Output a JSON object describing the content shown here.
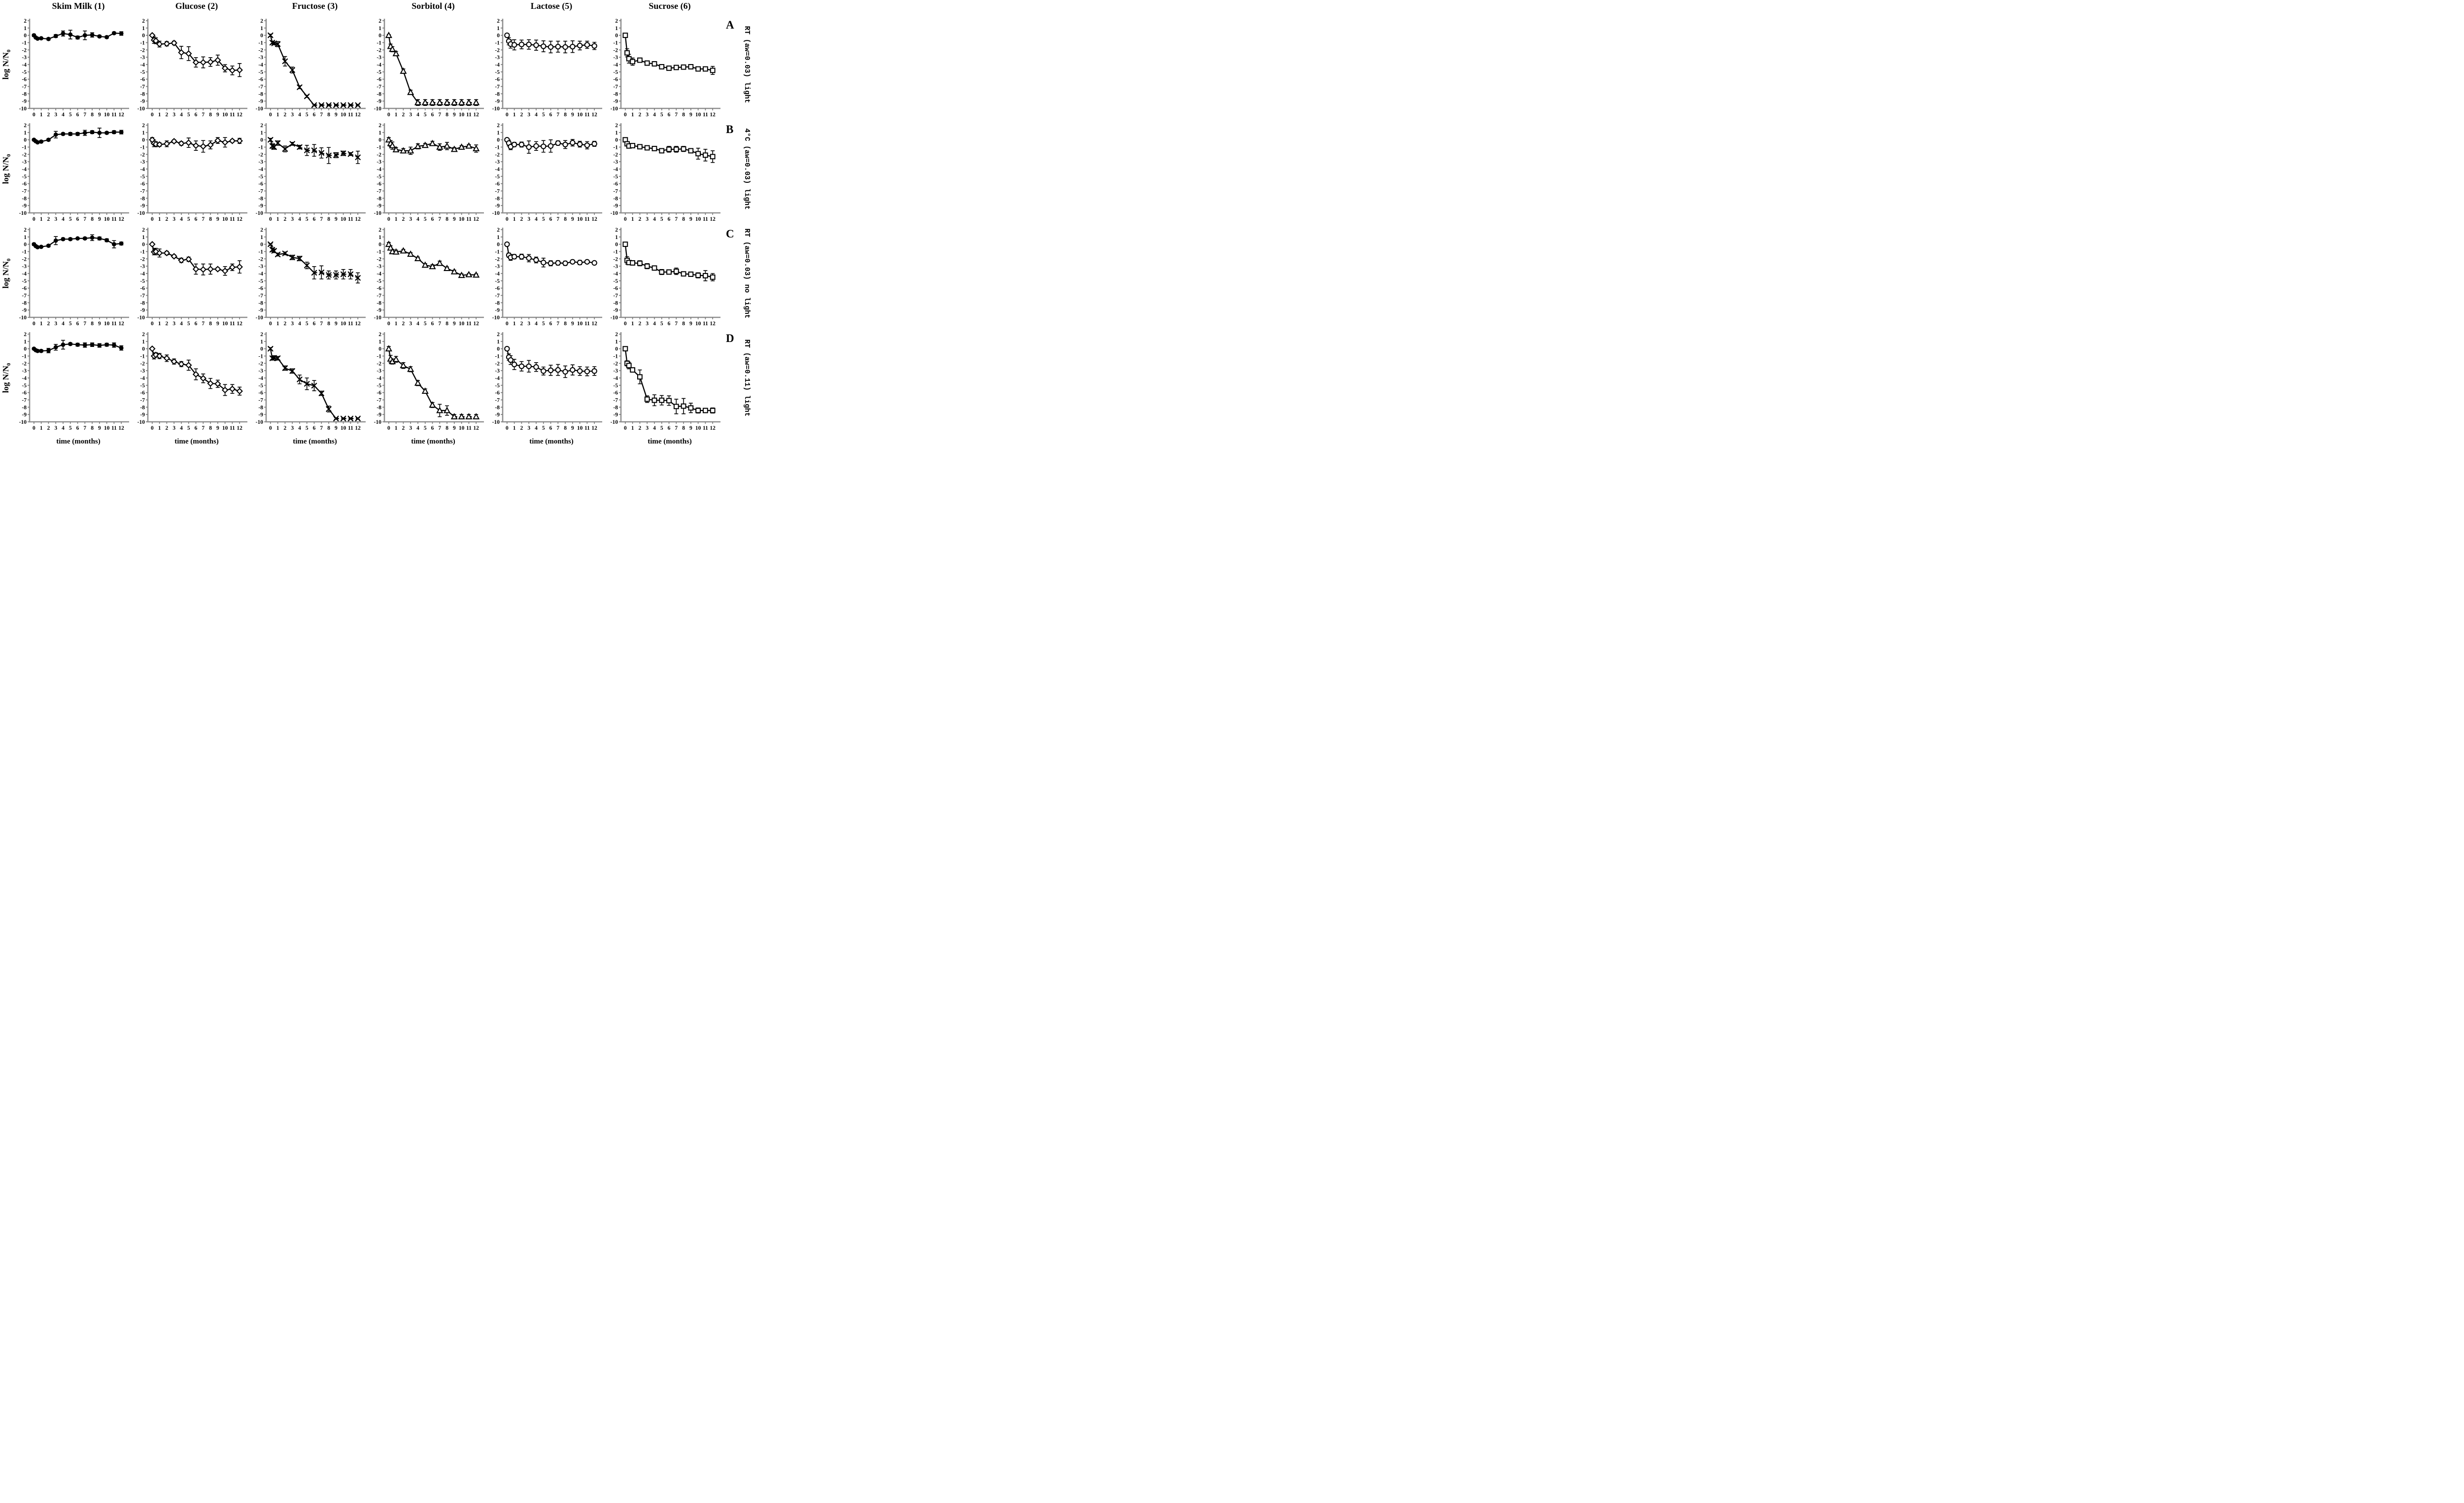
{
  "figure": {
    "y_axis_label_main": "log N/N",
    "y_axis_label_sub": "0"
  },
  "chart_data": {
    "type": "line",
    "layout": "4 rows x 6 columns of line panels with error bars",
    "x_label": "time (months)",
    "y_label": "log N/N0",
    "xlim": [
      0,
      12
    ],
    "ylim": [
      -10,
      2
    ],
    "grid": "off",
    "legend": "none",
    "y_tick_labels": [
      "2",
      "1",
      "0",
      "-1",
      "-2",
      "-3",
      "-4",
      "-5",
      "-6",
      "-7",
      "-8",
      "-9",
      "-10"
    ],
    "x_tick_labels": [
      "0",
      "1",
      "2",
      "3",
      "4",
      "5",
      "6",
      "7",
      "8",
      "9",
      "10",
      "11",
      "12"
    ],
    "x_sample_months": [
      0,
      0.25,
      0.5,
      1,
      2,
      3,
      4,
      5,
      6,
      7,
      8,
      9,
      10,
      11,
      12
    ],
    "columns": [
      {
        "title": "Skim Milk (1)",
        "marker": "filled-circle"
      },
      {
        "title": "Glucose (2)",
        "marker": "open-diamond"
      },
      {
        "title": "Fructose (3)",
        "marker": "x-cross"
      },
      {
        "title": "Sorbitol (4)",
        "marker": "open-triangle"
      },
      {
        "title": "Lactose (5)",
        "marker": "open-circle"
      },
      {
        "title": "Sucrose (6)",
        "marker": "open-square"
      }
    ],
    "rows": [
      {
        "letter": "A",
        "condition": "RT (aw=0.03) light"
      },
      {
        "letter": "B",
        "condition": "4°C (aw=0.03) light"
      },
      {
        "letter": "C",
        "condition": "RT (aw=0.03) no light"
      },
      {
        "letter": "D",
        "condition": "RT (aw=0.11) light"
      }
    ],
    "panels": [
      {
        "row": "A",
        "column": "Skim Milk (1)",
        "marker": "filled-circle",
        "dash_from": null,
        "y": [
          0,
          -0.3,
          -0.45,
          -0.4,
          -0.5,
          -0.1,
          0.25,
          0.1,
          -0.3,
          0.0,
          0.05,
          -0.15,
          -0.25,
          0.3,
          0.25
        ],
        "yerr": [
          0.15,
          0.1,
          0.1,
          0.1,
          0.15,
          0.2,
          0.35,
          0.6,
          0.2,
          0.6,
          0.3,
          0.15,
          0.15,
          0.15,
          0.25
        ]
      },
      {
        "row": "A",
        "column": "Glucose (2)",
        "marker": "open-diamond",
        "dash_from": null,
        "y": [
          0,
          -0.65,
          -0.75,
          -1.2,
          -1.15,
          -1.05,
          -2.35,
          -2.5,
          -3.7,
          -3.7,
          -3.65,
          -3.4,
          -4.5,
          -4.8,
          -4.75
        ],
        "yerr": [
          0.1,
          0.45,
          0.4,
          0.4,
          0.3,
          0.25,
          0.85,
          0.95,
          0.65,
          0.75,
          0.6,
          0.7,
          0.5,
          0.6,
          0.9
        ]
      },
      {
        "row": "A",
        "column": "Fructose (3)",
        "marker": "x-cross",
        "dash_from": 8,
        "y": [
          0,
          -1.0,
          -1.1,
          -1.2,
          -3.55,
          -4.75,
          -7.1,
          -8.35,
          -9.55,
          -9.55,
          -9.55,
          -9.55,
          -9.55,
          -9.55,
          -9.55
        ],
        "yerr": [
          0.15,
          0.2,
          0.2,
          0.35,
          0.65,
          0.4,
          0.2,
          0.15,
          0.1,
          0.1,
          0.1,
          0.1,
          0.1,
          0.1,
          0.1
        ]
      },
      {
        "row": "A",
        "column": "Sorbitol (4)",
        "marker": "open-triangle",
        "dash_from": 6,
        "y": [
          0,
          -1.5,
          -1.9,
          -2.5,
          -4.9,
          -7.8,
          -9.2,
          -9.2,
          -9.2,
          -9.2,
          -9.2,
          -9.2,
          -9.2,
          -9.2,
          -9.2
        ],
        "yerr": [
          0.1,
          0.3,
          0.35,
          0.3,
          0.3,
          0.3,
          0.4,
          0.4,
          0.4,
          0.4,
          0.4,
          0.4,
          0.4,
          0.4,
          0.4
        ]
      },
      {
        "row": "A",
        "column": "Lactose (5)",
        "marker": "open-circle",
        "dash_from": null,
        "y": [
          0,
          -0.8,
          -1.2,
          -1.3,
          -1.25,
          -1.25,
          -1.35,
          -1.5,
          -1.6,
          -1.55,
          -1.6,
          -1.55,
          -1.4,
          -1.3,
          -1.45
        ],
        "yerr": [
          0.1,
          0.5,
          0.55,
          0.7,
          0.6,
          0.65,
          0.7,
          0.75,
          0.8,
          0.75,
          0.8,
          0.8,
          0.6,
          0.5,
          0.5
        ]
      },
      {
        "row": "A",
        "column": "Sucrose (6)",
        "marker": "open-square",
        "dash_from": null,
        "y": [
          0,
          -2.4,
          -3.2,
          -3.6,
          -3.4,
          -3.8,
          -3.9,
          -4.3,
          -4.5,
          -4.4,
          -4.35,
          -4.3,
          -4.6,
          -4.6,
          -4.8
        ],
        "yerr": [
          0.05,
          0.55,
          0.6,
          0.5,
          0.3,
          0.3,
          0.3,
          0.25,
          0.2,
          0.25,
          0.2,
          0.3,
          0.2,
          0.25,
          0.55
        ]
      },
      {
        "row": "B",
        "column": "Skim Milk (1)",
        "marker": "filled-circle",
        "dash_from": null,
        "y": [
          0,
          -0.2,
          -0.35,
          -0.25,
          0.0,
          0.7,
          0.8,
          0.8,
          0.8,
          0.95,
          1.05,
          0.95,
          0.95,
          1.05,
          1.05
        ],
        "yerr": [
          0.1,
          0.1,
          0.1,
          0.15,
          0.15,
          0.45,
          0.15,
          0.2,
          0.2,
          0.35,
          0.2,
          0.65,
          0.15,
          0.2,
          0.25
        ]
      },
      {
        "row": "B",
        "column": "Glucose (2)",
        "marker": "open-diamond",
        "dash_from": null,
        "y": [
          0,
          -0.5,
          -0.6,
          -0.65,
          -0.55,
          -0.2,
          -0.5,
          -0.4,
          -0.8,
          -0.9,
          -0.7,
          -0.1,
          -0.35,
          -0.15,
          -0.15
        ],
        "yerr": [
          0.3,
          0.45,
          0.35,
          0.25,
          0.4,
          0.2,
          0.25,
          0.65,
          0.65,
          0.8,
          0.55,
          0.4,
          0.65,
          0.2,
          0.35
        ]
      },
      {
        "row": "B",
        "column": "Fructose (3)",
        "marker": "x-cross",
        "dash_from": 6,
        "y": [
          0,
          -0.85,
          -1.0,
          -0.45,
          -1.25,
          -0.55,
          -1.0,
          -1.45,
          -1.45,
          -1.8,
          -2.15,
          -2.1,
          -1.85,
          -1.95,
          -2.4
        ],
        "yerr": [
          0.2,
          0.3,
          0.3,
          0.3,
          0.4,
          0.2,
          0.25,
          0.7,
          0.8,
          0.7,
          1.1,
          0.35,
          0.3,
          0.2,
          0.85
        ]
      },
      {
        "row": "B",
        "column": "Sorbitol (4)",
        "marker": "open-triangle",
        "dash_from": null,
        "y": [
          0,
          -0.5,
          -0.8,
          -1.35,
          -1.5,
          -1.5,
          -0.9,
          -0.75,
          -0.5,
          -1.0,
          -0.85,
          -1.3,
          -1.0,
          -0.85,
          -1.2
        ],
        "yerr": [
          0.3,
          0.4,
          0.5,
          0.3,
          0.3,
          0.5,
          0.35,
          0.25,
          0.3,
          0.45,
          0.5,
          0.25,
          0.2,
          0.2,
          0.5
        ]
      },
      {
        "row": "B",
        "column": "Lactose (5)",
        "marker": "open-circle",
        "dash_from": null,
        "y": [
          0,
          -0.45,
          -0.95,
          -0.65,
          -0.65,
          -1.0,
          -0.85,
          -0.9,
          -0.85,
          -0.45,
          -0.65,
          -0.4,
          -0.6,
          -0.75,
          -0.55
        ],
        "yerr": [
          0.1,
          0.4,
          0.4,
          0.3,
          0.35,
          0.85,
          0.6,
          0.8,
          0.85,
          0.3,
          0.55,
          0.45,
          0.4,
          0.5,
          0.35
        ]
      },
      {
        "row": "B",
        "column": "Sucrose (6)",
        "marker": "open-square",
        "dash_from": null,
        "y": [
          0,
          -0.55,
          -0.85,
          -0.8,
          -0.95,
          -1.1,
          -1.2,
          -1.5,
          -1.3,
          -1.3,
          -1.25,
          -1.5,
          -1.9,
          -2.1,
          -2.3
        ],
        "yerr": [
          0.05,
          0.25,
          0.3,
          0.25,
          0.25,
          0.2,
          0.25,
          0.3,
          0.4,
          0.4,
          0.35,
          0.3,
          0.75,
          0.8,
          0.8
        ]
      },
      {
        "row": "C",
        "column": "Skim Milk (1)",
        "marker": "filled-circle",
        "dash_from": null,
        "y": [
          0,
          -0.25,
          -0.4,
          -0.35,
          -0.2,
          0.5,
          0.7,
          0.7,
          0.8,
          0.8,
          0.9,
          0.8,
          0.55,
          0.0,
          0.1
        ],
        "yerr": [
          0.15,
          0.1,
          0.1,
          0.1,
          0.15,
          0.55,
          0.15,
          0.15,
          0.1,
          0.15,
          0.4,
          0.2,
          0.2,
          0.5,
          0.2
        ]
      },
      {
        "row": "C",
        "column": "Glucose (2)",
        "marker": "open-diamond",
        "dash_from": null,
        "y": [
          0,
          -1.05,
          -1.0,
          -1.2,
          -1.2,
          -1.65,
          -2.2,
          -2.05,
          -3.4,
          -3.45,
          -3.4,
          -3.4,
          -3.65,
          -3.15,
          -3.1
        ],
        "yerr": [
          0.1,
          0.4,
          0.45,
          0.55,
          0.25,
          0.2,
          0.3,
          0.3,
          0.7,
          0.75,
          0.7,
          0.2,
          0.6,
          0.45,
          0.85
        ]
      },
      {
        "row": "C",
        "column": "Fructose (3)",
        "marker": "x-cross",
        "dash_from": 8,
        "y": [
          0,
          -0.75,
          -0.9,
          -1.4,
          -1.25,
          -1.8,
          -1.95,
          -2.9,
          -3.9,
          -3.85,
          -4.2,
          -4.2,
          -4.1,
          -4.1,
          -4.6
        ],
        "yerr": [
          0.1,
          0.25,
          0.25,
          0.2,
          0.2,
          0.3,
          0.3,
          0.45,
          0.85,
          0.9,
          0.55,
          0.55,
          0.65,
          0.65,
          0.7
        ]
      },
      {
        "row": "C",
        "column": "Sorbitol (4)",
        "marker": "open-triangle",
        "dash_from": null,
        "y": [
          0,
          -0.5,
          -1.0,
          -1.05,
          -0.9,
          -1.35,
          -1.95,
          -2.85,
          -3.05,
          -2.6,
          -3.3,
          -3.75,
          -4.25,
          -4.15,
          -4.2
        ],
        "yerr": [
          0.25,
          0.3,
          0.3,
          0.25,
          0.2,
          0.2,
          0.2,
          0.2,
          0.25,
          0.3,
          0.2,
          0.2,
          0.2,
          0.15,
          0.15
        ]
      },
      {
        "row": "C",
        "column": "Lactose (5)",
        "marker": "open-circle",
        "dash_from": null,
        "y": [
          0,
          -1.5,
          -1.8,
          -1.7,
          -1.7,
          -1.9,
          -2.15,
          -2.5,
          -2.6,
          -2.55,
          -2.6,
          -2.4,
          -2.5,
          -2.4,
          -2.55
        ],
        "yerr": [
          0.1,
          0.3,
          0.4,
          0.3,
          0.35,
          0.5,
          0.4,
          0.6,
          0.35,
          0.3,
          0.3,
          0.25,
          0.3,
          0.2,
          0.2
        ]
      },
      {
        "row": "C",
        "column": "Sucrose (6)",
        "marker": "open-square",
        "dash_from": null,
        "y": [
          0,
          -2.2,
          -2.5,
          -2.55,
          -2.6,
          -3.0,
          -3.25,
          -3.8,
          -3.8,
          -3.7,
          -4.05,
          -4.1,
          -4.25,
          -4.3,
          -4.5
        ],
        "yerr": [
          0.05,
          0.5,
          0.3,
          0.3,
          0.35,
          0.35,
          0.3,
          0.35,
          0.3,
          0.45,
          0.3,
          0.3,
          0.35,
          0.7,
          0.5
        ]
      },
      {
        "row": "D",
        "column": "Skim Milk (1)",
        "marker": "filled-circle",
        "dash_from": null,
        "y": [
          0,
          -0.2,
          -0.3,
          -0.3,
          -0.25,
          0.2,
          0.55,
          0.65,
          0.55,
          0.5,
          0.55,
          0.45,
          0.55,
          0.5,
          0.1
        ],
        "yerr": [
          0.1,
          0.1,
          0.15,
          0.15,
          0.3,
          0.4,
          0.6,
          0.15,
          0.2,
          0.3,
          0.25,
          0.25,
          0.2,
          0.3,
          0.3
        ]
      },
      {
        "row": "D",
        "column": "Glucose (2)",
        "marker": "open-diamond",
        "dash_from": null,
        "y": [
          0,
          -1.0,
          -0.85,
          -1.0,
          -1.3,
          -1.75,
          -2.1,
          -2.25,
          -3.5,
          -4.05,
          -4.75,
          -4.8,
          -5.65,
          -5.5,
          -5.8
        ],
        "yerr": [
          0.1,
          0.4,
          0.3,
          0.35,
          0.45,
          0.35,
          0.35,
          0.7,
          0.75,
          0.6,
          0.7,
          0.5,
          0.75,
          0.6,
          0.55
        ]
      },
      {
        "row": "D",
        "column": "Fructose (3)",
        "marker": "x-cross",
        "dash_from": 11,
        "y": [
          0,
          -1.3,
          -1.25,
          -1.3,
          -2.65,
          -3.05,
          -4.2,
          -4.8,
          -5.05,
          -6.1,
          -8.25,
          -9.55,
          -9.55,
          -9.55,
          -9.55
        ],
        "yerr": [
          0.15,
          0.25,
          0.3,
          0.25,
          0.3,
          0.3,
          0.6,
          0.8,
          0.7,
          0.3,
          0.4,
          0.1,
          0.1,
          0.1,
          0.1
        ]
      },
      {
        "row": "D",
        "column": "Sorbitol (4)",
        "marker": "open-triangle",
        "dash_from": 11,
        "y": [
          0,
          -1.4,
          -1.75,
          -1.45,
          -2.3,
          -2.8,
          -4.7,
          -5.8,
          -7.7,
          -8.45,
          -8.45,
          -9.3,
          -9.3,
          -9.3,
          -9.3
        ],
        "yerr": [
          0.3,
          0.5,
          0.35,
          0.4,
          0.4,
          0.35,
          0.35,
          0.3,
          0.35,
          0.85,
          0.65,
          0.3,
          0.3,
          0.3,
          0.3
        ]
      },
      {
        "row": "D",
        "column": "Lactose (5)",
        "marker": "open-circle",
        "dash_from": null,
        "y": [
          0,
          -1.15,
          -1.55,
          -2.15,
          -2.4,
          -2.4,
          -2.5,
          -3.05,
          -2.95,
          -2.9,
          -3.15,
          -2.9,
          -3.05,
          -3.1,
          -3.05
        ],
        "yerr": [
          0.1,
          0.45,
          0.6,
          0.7,
          0.65,
          0.8,
          0.6,
          0.55,
          0.7,
          0.75,
          0.8,
          0.7,
          0.6,
          0.6,
          0.6
        ]
      },
      {
        "row": "D",
        "column": "Sucrose (6)",
        "marker": "open-square",
        "dash_from": null,
        "y": [
          0,
          -2.0,
          -2.3,
          -2.9,
          -3.85,
          -6.9,
          -7.05,
          -7.05,
          -7.1,
          -7.9,
          -7.85,
          -8.1,
          -8.45,
          -8.45,
          -8.45
        ],
        "yerr": [
          0.05,
          0.35,
          0.45,
          0.3,
          0.95,
          0.45,
          0.75,
          0.65,
          0.65,
          1.0,
          1.05,
          0.65,
          0.35,
          0.3,
          0.35
        ]
      }
    ]
  }
}
